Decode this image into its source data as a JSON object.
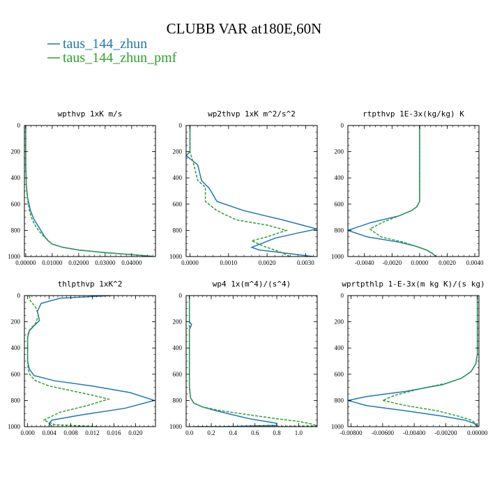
{
  "figure": {
    "title": "CLUBB VAR at180E,60N",
    "legend": [
      {
        "label": "taus_144_zhun",
        "color": "#1f77b4",
        "dash": "solid"
      },
      {
        "label": "taus_144_zhun_pmf",
        "color": "#2ca02c",
        "dash": "dashed"
      }
    ]
  },
  "chart_data": [
    {
      "type": "line",
      "title": "wpthvp  1xK m/s",
      "xlim": [
        -0.0005,
        0.049
      ],
      "xticks": [
        0.0,
        0.01,
        0.02,
        0.03,
        0.04
      ],
      "xticklabels": [
        "0.00000",
        "0.01000",
        "0.02000",
        "0.03000",
        "0.04000"
      ],
      "ylim": [
        0,
        1000
      ],
      "yticks": [
        0,
        200,
        400,
        600,
        800,
        1000
      ],
      "yticklabels": [
        "0",
        "200",
        "400",
        "600",
        "800",
        "1000"
      ],
      "series": [
        {
          "name": "taus_144_zhun",
          "x": [
            0.0,
            0.0,
            0.0002,
            0.0007,
            0.0018,
            0.0032,
            0.0048,
            0.006,
            0.0072,
            0.0085,
            0.01,
            0.014,
            0.02,
            0.03,
            0.04,
            0.048
          ],
          "y": [
            0,
            300,
            450,
            550,
            650,
            720,
            770,
            810,
            850,
            880,
            905,
            930,
            950,
            970,
            985,
            998
          ]
        },
        {
          "name": "taus_144_zhun_pmf",
          "x": [
            0.0,
            0.0,
            0.0002,
            0.0006,
            0.0014,
            0.0025,
            0.0038,
            0.0052,
            0.007,
            0.0085,
            0.01,
            0.014,
            0.02,
            0.03,
            0.04,
            0.047
          ],
          "y": [
            0,
            300,
            450,
            550,
            650,
            720,
            770,
            810,
            850,
            880,
            905,
            930,
            950,
            970,
            985,
            998
          ]
        }
      ]
    },
    {
      "type": "line",
      "title": "wp2thvp  1xK m^2/s^2",
      "xlim": [
        -0.0001,
        0.0033
      ],
      "xticks": [
        0.0,
        0.001,
        0.002,
        0.003
      ],
      "xticklabels": [
        "0.0000",
        "0.0010",
        "0.0020",
        "0.0030"
      ],
      "ylim": [
        0,
        1000
      ],
      "yticks": [
        0,
        200,
        400,
        600,
        800,
        1000
      ],
      "yticklabels": [
        "0",
        "200",
        "400",
        "600",
        "800",
        "1000"
      ],
      "series": [
        {
          "name": "taus_144_zhun",
          "x": [
            0.0,
            0.0,
            0.0,
            -0.0001,
            0.0002,
            0.0003,
            0.0005,
            0.0007,
            0.0014,
            0.0024,
            0.0033,
            0.0028,
            0.0022,
            0.0016,
            0.0018,
            0.0025,
            0.0032
          ],
          "y": [
            0,
            150,
            200,
            230,
            300,
            420,
            480,
            580,
            650,
            720,
            790,
            820,
            860,
            930,
            950,
            975,
            1000
          ]
        },
        {
          "name": "taus_144_zhun_pmf",
          "x": [
            0.0,
            0.0,
            0.0,
            0.0001,
            0.0002,
            0.0004,
            0.0004,
            0.0007,
            0.0012,
            0.002,
            0.0025,
            0.002,
            0.0016,
            0.0019,
            0.0023,
            0.0026
          ],
          "y": [
            0,
            150,
            200,
            300,
            420,
            470,
            580,
            650,
            720,
            760,
            800,
            850,
            880,
            920,
            960,
            1000
          ]
        }
      ]
    },
    {
      "type": "line",
      "title": "rtpthvp  1E-3x(kg/kg) K",
      "xlim": [
        -0.0052,
        0.0043
      ],
      "xticks": [
        -0.004,
        -0.002,
        0.0,
        0.002,
        0.004
      ],
      "xticklabels": [
        "-0.0040",
        "-0.0020",
        "0.0000",
        "0.0020",
        "0.0040"
      ],
      "ylim": [
        0,
        1000
      ],
      "yticks": [
        0,
        200,
        400,
        600,
        800,
        1000
      ],
      "yticklabels": [
        "0",
        "200",
        "400",
        "600",
        "800",
        "1000"
      ],
      "series": [
        {
          "name": "taus_144_zhun",
          "x": [
            0.0,
            0.0,
            -0.0002,
            -0.0006,
            -0.0015,
            -0.0035,
            -0.0052,
            -0.0038,
            -0.0015,
            -0.0003,
            0.0005,
            0.0009,
            0.0012
          ],
          "y": [
            0,
            580,
            620,
            650,
            690,
            740,
            800,
            850,
            890,
            920,
            950,
            975,
            1000
          ]
        },
        {
          "name": "taus_144_zhun_pmf",
          "x": [
            0.0,
            0.0,
            -0.0002,
            -0.0006,
            -0.0015,
            -0.0027,
            -0.0036,
            -0.0028,
            -0.0012,
            -0.0003,
            0.0005,
            0.0009,
            0.0012
          ],
          "y": [
            0,
            580,
            620,
            650,
            690,
            740,
            790,
            850,
            890,
            920,
            950,
            975,
            1000
          ]
        }
      ]
    },
    {
      "type": "line",
      "title": "thlpthvp  1xK^2",
      "xlim": [
        -0.0006,
        0.0237
      ],
      "xticks": [
        0.0,
        0.004,
        0.008,
        0.012,
        0.016,
        0.02
      ],
      "xticklabels": [
        "0.000",
        "0.004",
        "0.008",
        "0.012",
        "0.016",
        "0.020"
      ],
      "ylim": [
        0,
        1000
      ],
      "yticks": [
        0,
        200,
        400,
        600,
        800,
        1000
      ],
      "yticklabels": [
        "0",
        "200",
        "400",
        "600",
        "800",
        "1000"
      ],
      "series": [
        {
          "name": "taus_144_zhun",
          "x": [
            0.0155,
            0.006,
            0.0025,
            0.0018,
            0.0022,
            0.0012,
            0.0003,
            0.0,
            0.0,
            0.0,
            0.0003,
            0.0012,
            0.005,
            0.012,
            0.019,
            0.0235,
            0.018,
            0.01,
            0.0045,
            0.004,
            0.0045
          ],
          "y": [
            0,
            20,
            60,
            120,
            190,
            230,
            270,
            320,
            400,
            500,
            560,
            610,
            650,
            690,
            740,
            800,
            860,
            910,
            950,
            975,
            1000
          ]
        },
        {
          "name": "taus_144_zhun_pmf",
          "x": [
            0.0003,
            0.0005,
            0.0015,
            0.002,
            0.0015,
            0.0004,
            0.0,
            0.0,
            0.0,
            0.0001,
            0.0005,
            0.0015,
            0.004,
            0.0075,
            0.012,
            0.015,
            0.011,
            0.006,
            0.003,
            0.005,
            0.0132
          ],
          "y": [
            0,
            40,
            90,
            150,
            210,
            260,
            300,
            400,
            500,
            560,
            610,
            650,
            690,
            720,
            760,
            790,
            840,
            890,
            950,
            985,
            1000
          ]
        }
      ]
    },
    {
      "type": "line",
      "title": "wp4  1x(m^4)/(s^4)",
      "xlim": [
        -0.03,
        1.17
      ],
      "xticks": [
        0.0,
        0.2,
        0.4,
        0.6,
        0.8,
        1.0
      ],
      "xticklabels": [
        "0.0",
        "0.2",
        "0.4",
        "0.6",
        "0.8",
        "1.0"
      ],
      "ylim": [
        0,
        1000
      ],
      "yticks": [
        0,
        200,
        400,
        600,
        800,
        1000
      ],
      "yticklabels": [
        "0",
        "200",
        "400",
        "600",
        "800",
        "1000"
      ],
      "series": [
        {
          "name": "taus_144_zhun",
          "x": [
            0.0,
            0.0,
            0.02,
            0.0,
            0.0,
            0.01,
            0.04,
            0.12,
            0.25,
            0.4,
            0.55,
            0.7,
            0.8,
            0.8,
            0.3,
            0.05
          ],
          "y": [
            0,
            200,
            220,
            260,
            700,
            780,
            820,
            850,
            880,
            910,
            940,
            960,
            975,
            990,
            1000,
            1000
          ]
        },
        {
          "name": "taus_144_zhun_pmf",
          "x": [
            0.0,
            0.0,
            0.0,
            0.01,
            0.04,
            0.12,
            0.3,
            0.55,
            0.8,
            1.0,
            1.12,
            1.17,
            0.4,
            0.05
          ],
          "y": [
            0,
            300,
            700,
            780,
            820,
            850,
            880,
            910,
            940,
            960,
            980,
            995,
            1000,
            1000
          ]
        }
      ]
    },
    {
      "type": "line",
      "title": "wprtpthlp  1-E-3x(m kg K)/(s kg)",
      "xlim": [
        -0.0082,
        0.0001
      ],
      "xticks": [
        -0.008,
        -0.006,
        -0.004,
        -0.002,
        0.0
      ],
      "xticklabels": [
        "-0.00800",
        "-0.00600",
        "-0.00400",
        "-0.00200",
        "0.00000"
      ],
      "ylim": [
        0,
        1000
      ],
      "yticks": [
        0,
        200,
        400,
        600,
        800,
        1000
      ],
      "yticklabels": [
        "0",
        "200",
        "400",
        "600",
        "800",
        "1000"
      ],
      "series": [
        {
          "name": "taus_144_zhun",
          "x": [
            0.0,
            0.0,
            -0.0001,
            -0.0004,
            -0.001,
            -0.0022,
            -0.0045,
            -0.007,
            -0.0082,
            -0.007,
            -0.0045,
            -0.0022,
            -0.0008,
            -0.0002,
            0.0
          ],
          "y": [
            0,
            450,
            520,
            580,
            630,
            680,
            730,
            770,
            800,
            840,
            880,
            920,
            950,
            975,
            1000
          ]
        },
        {
          "name": "taus_144_zhun_pmf",
          "x": [
            0.0,
            0.0,
            -0.0001,
            -0.0004,
            -0.001,
            -0.002,
            -0.0036,
            -0.0052,
            -0.006,
            -0.0045,
            -0.0025,
            -0.0012,
            -0.0004,
            -0.0001,
            0.0
          ],
          "y": [
            0,
            450,
            520,
            580,
            630,
            670,
            710,
            760,
            800,
            840,
            880,
            920,
            950,
            975,
            1000
          ]
        }
      ]
    }
  ]
}
